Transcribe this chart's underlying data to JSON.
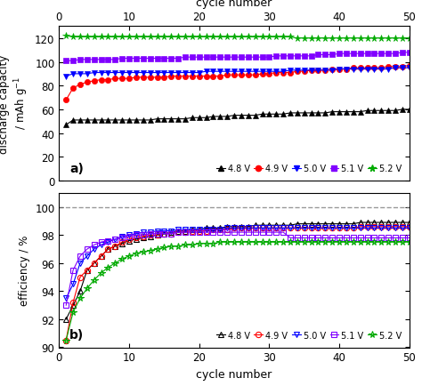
{
  "top_xlabel": "cycle number",
  "bottom_xlabel": "cycle number",
  "ylabel_a": "discharge capacity\n / mAh g⁻¹",
  "ylabel_b": "efficiency / %",
  "label_a": "a)",
  "label_b": "b)",
  "colors": {
    "4.8V": "#000000",
    "4.9V": "#ff0000",
    "5.0V": "#0000ff",
    "5.1V": "#8000ff",
    "5.2V": "#00aa00"
  },
  "legend_labels": [
    "4.8 V",
    "4.9 V",
    "5.0 V",
    "5.1 V",
    "5.2 V"
  ],
  "ylim_a": [
    0,
    130
  ],
  "yticks_a": [
    0,
    20,
    40,
    60,
    80,
    100,
    120
  ],
  "ylim_b": [
    90,
    101
  ],
  "yticks_b": [
    90,
    92,
    94,
    96,
    98,
    100
  ],
  "xlim": [
    0,
    50
  ],
  "xticks": [
    0,
    10,
    20,
    30,
    40,
    50
  ],
  "dashed_line_y": 100,
  "capacity_48": [
    47,
    51,
    51,
    51,
    51,
    51,
    51,
    51,
    51,
    51,
    51,
    51,
    51,
    52,
    52,
    52,
    52,
    52,
    53,
    53,
    53,
    54,
    54,
    54,
    55,
    55,
    55,
    55,
    56,
    56,
    56,
    56,
    57,
    57,
    57,
    57,
    57,
    57,
    58,
    58,
    58,
    58,
    58,
    59,
    59,
    59,
    59,
    59,
    60,
    60
  ],
  "capacity_49": [
    68,
    78,
    81,
    83,
    84,
    85,
    85,
    86,
    86,
    86,
    87,
    87,
    87,
    87,
    87,
    88,
    88,
    88,
    88,
    88,
    88,
    88,
    88,
    89,
    89,
    89,
    89,
    89,
    90,
    90,
    91,
    91,
    91,
    92,
    92,
    93,
    93,
    93,
    94,
    94,
    94,
    95,
    95,
    95,
    95,
    95,
    96,
    96,
    96,
    97
  ],
  "capacity_50": [
    88,
    90,
    90,
    90,
    91,
    91,
    91,
    91,
    91,
    91,
    91,
    91,
    91,
    91,
    91,
    91,
    91,
    91,
    91,
    91,
    92,
    92,
    92,
    92,
    92,
    92,
    92,
    92,
    92,
    92,
    92,
    92,
    93,
    93,
    93,
    93,
    93,
    93,
    93,
    94,
    94,
    94,
    94,
    94,
    94,
    94,
    94,
    95,
    95,
    95
  ],
  "capacity_51": [
    101,
    101,
    102,
    102,
    102,
    102,
    102,
    102,
    103,
    103,
    103,
    103,
    103,
    103,
    103,
    103,
    103,
    104,
    104,
    104,
    104,
    104,
    104,
    104,
    104,
    104,
    104,
    104,
    104,
    104,
    105,
    105,
    105,
    105,
    105,
    105,
    106,
    106,
    106,
    107,
    107,
    107,
    107,
    107,
    107,
    107,
    107,
    107,
    108,
    108
  ],
  "capacity_52": [
    122,
    121,
    121,
    121,
    121,
    121,
    121,
    121,
    121,
    121,
    121,
    121,
    121,
    121,
    121,
    121,
    121,
    121,
    121,
    121,
    121,
    121,
    121,
    121,
    121,
    121,
    121,
    121,
    121,
    121,
    121,
    121,
    121,
    120,
    120,
    120,
    120,
    120,
    120,
    120,
    120,
    120,
    120,
    120,
    120,
    120,
    120,
    120,
    120,
    120
  ],
  "eff_48": [
    92.0,
    93.0,
    94.0,
    95.5,
    96.0,
    96.5,
    97.0,
    97.2,
    97.4,
    97.6,
    97.7,
    97.8,
    97.9,
    98.0,
    98.1,
    98.2,
    98.3,
    98.3,
    98.4,
    98.4,
    98.5,
    98.5,
    98.5,
    98.6,
    98.6,
    98.6,
    98.6,
    98.7,
    98.7,
    98.7,
    98.7,
    98.7,
    98.7,
    98.8,
    98.8,
    98.8,
    98.8,
    98.8,
    98.8,
    98.8,
    98.8,
    98.8,
    98.9,
    98.9,
    98.9,
    98.9,
    98.9,
    98.9,
    98.9,
    98.9
  ],
  "eff_49": [
    90.5,
    93.2,
    95.0,
    95.5,
    96.0,
    96.5,
    97.0,
    97.2,
    97.5,
    97.7,
    97.8,
    97.9,
    98.0,
    98.0,
    98.1,
    98.1,
    98.2,
    98.2,
    98.3,
    98.3,
    98.3,
    98.4,
    98.4,
    98.4,
    98.5,
    98.5,
    98.5,
    98.5,
    98.5,
    98.5,
    98.5,
    98.5,
    98.5,
    98.5,
    98.5,
    98.5,
    98.5,
    98.5,
    98.5,
    98.5,
    98.5,
    98.5,
    98.6,
    98.6,
    98.6,
    98.6,
    98.6,
    98.6,
    98.6,
    98.6
  ],
  "eff_50": [
    93.5,
    94.5,
    96.0,
    96.5,
    97.0,
    97.3,
    97.5,
    97.7,
    97.9,
    98.0,
    98.1,
    98.2,
    98.2,
    98.3,
    98.3,
    98.3,
    98.4,
    98.4,
    98.4,
    98.4,
    98.4,
    98.4,
    98.4,
    98.5,
    98.5,
    98.5,
    98.5,
    98.5,
    98.5,
    98.5,
    98.5,
    98.5,
    98.5,
    98.5,
    98.5,
    98.5,
    98.5,
    98.5,
    98.5,
    98.5,
    98.5,
    98.5,
    98.5,
    98.5,
    98.5,
    98.5,
    98.5,
    98.5,
    98.5,
    98.5
  ],
  "eff_51": [
    93.0,
    95.5,
    96.5,
    97.0,
    97.3,
    97.5,
    97.6,
    97.7,
    97.8,
    97.9,
    98.0,
    98.0,
    98.1,
    98.1,
    98.1,
    98.1,
    98.2,
    98.2,
    98.2,
    98.2,
    98.2,
    98.2,
    98.2,
    98.2,
    98.2,
    98.2,
    98.2,
    98.2,
    98.2,
    98.2,
    98.2,
    98.2,
    97.8,
    97.8,
    97.8,
    97.8,
    97.8,
    97.8,
    97.8,
    97.8,
    97.8,
    97.8,
    97.8,
    97.8,
    97.8,
    97.8,
    97.8,
    97.8,
    97.8,
    97.8
  ],
  "eff_52": [
    90.5,
    92.5,
    93.5,
    94.2,
    94.8,
    95.3,
    95.7,
    96.0,
    96.3,
    96.5,
    96.7,
    96.8,
    96.9,
    97.0,
    97.1,
    97.2,
    97.2,
    97.3,
    97.3,
    97.4,
    97.4,
    97.4,
    97.5,
    97.5,
    97.5,
    97.5,
    97.5,
    97.5,
    97.5,
    97.5,
    97.5,
    97.5,
    97.5,
    97.5,
    97.5,
    97.5,
    97.5,
    97.5,
    97.5,
    97.5,
    97.5,
    97.5,
    97.5,
    97.5,
    97.5,
    97.5,
    97.5,
    97.5,
    97.5,
    97.5
  ]
}
